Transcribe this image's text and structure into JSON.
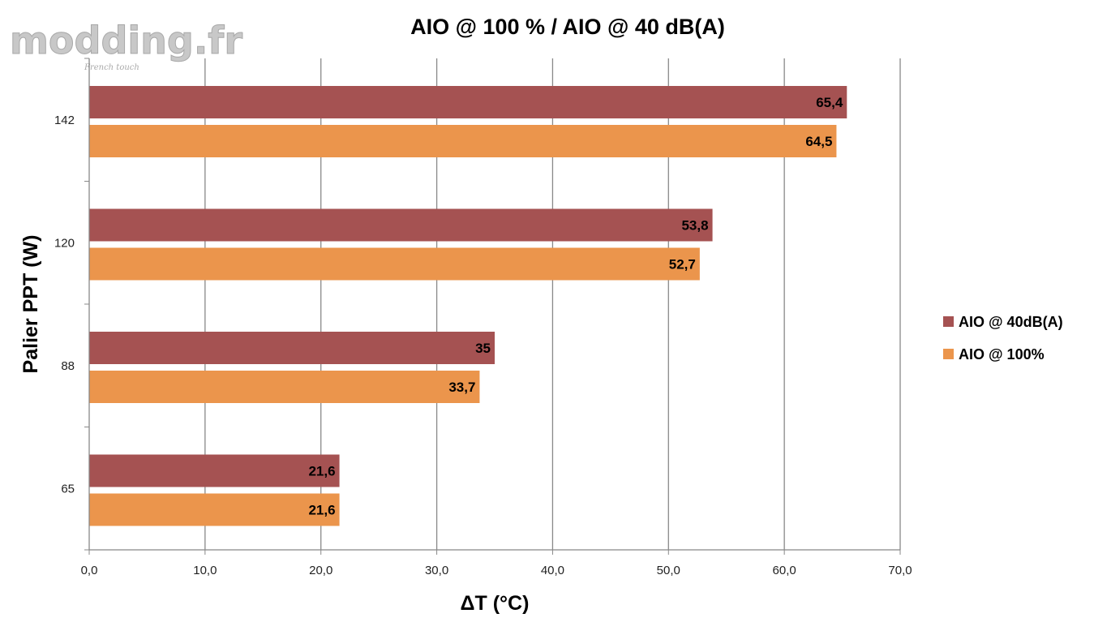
{
  "logo": {
    "text": "modding.fr",
    "tagline": "French touch"
  },
  "chart_data": {
    "type": "bar",
    "orientation": "horizontal",
    "title": "AIO @ 100 % / AIO @ 40 dB(A)",
    "xlabel": "ΔT (°C)",
    "ylabel": "Palier PPT (W)",
    "categories": [
      "65",
      "88",
      "120",
      "142"
    ],
    "xlim": [
      0,
      70
    ],
    "xticks": [
      "0,0",
      "10,0",
      "20,0",
      "30,0",
      "40,0",
      "50,0",
      "60,0",
      "70,0"
    ],
    "grid": true,
    "legend_position": "right",
    "series": [
      {
        "name": "AIO @ 40dB(A)",
        "color": "#A55252",
        "values": [
          21.6,
          35,
          53.8,
          65.4
        ],
        "labels": [
          "21,6",
          "35",
          "53,8",
          "65,4"
        ]
      },
      {
        "name": "AIO @ 100%",
        "color": "#EB954C",
        "values": [
          21.6,
          33.7,
          52.7,
          64.5
        ],
        "labels": [
          "21,6",
          "33,7",
          "52,7",
          "64,5"
        ]
      }
    ]
  }
}
